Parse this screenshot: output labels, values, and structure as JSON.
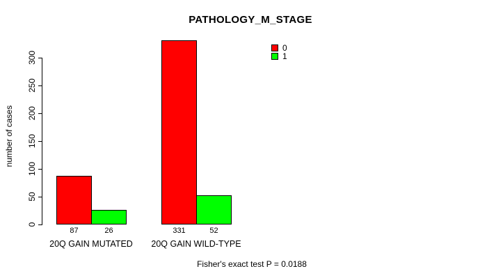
{
  "chart_data": {
    "type": "bar",
    "title": "PATHOLOGY_M_STAGE",
    "ylabel": "number of cases",
    "xlabel": "",
    "categories": [
      "20Q GAIN MUTATED",
      "20Q GAIN WILD-TYPE"
    ],
    "series": [
      {
        "name": "0",
        "color": "#ff0000",
        "values": [
          87,
          331
        ]
      },
      {
        "name": "1",
        "color": "#00ff00",
        "values": [
          26,
          52
        ]
      }
    ],
    "yticks": [
      0,
      50,
      100,
      150,
      200,
      250,
      300
    ],
    "ylim": [
      0,
      332
    ],
    "grid": false,
    "legend_position": "top-right",
    "bar_borders": "#000000",
    "annotation": "Fisher's exact test P = 0.0188"
  }
}
